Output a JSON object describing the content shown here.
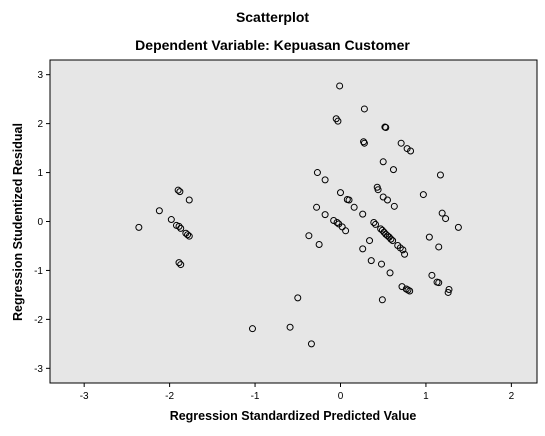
{
  "chart_data": {
    "type": "scatter",
    "title": "Scatterplot",
    "subtitle": "Dependent Variable: Kepuasan Customer",
    "xlabel": "Regression Standardized Predicted Value",
    "ylabel": "Regression Studentized Residual",
    "xlim": [
      -3.4,
      2.3
    ],
    "ylim": [
      -3.3,
      3.3
    ],
    "xticks": [
      "-3",
      "-2",
      "-1",
      "0",
      "1",
      "2"
    ],
    "yticks": [
      "3",
      "2",
      "1",
      "0",
      "-1",
      "-2",
      "-3"
    ],
    "grid": false,
    "background": "#e6e6e6",
    "marker_color": "#000000",
    "points": [
      {
        "x": -2.36,
        "y": -0.12
      },
      {
        "x": -2.12,
        "y": 0.22
      },
      {
        "x": -1.98,
        "y": 0.04
      },
      {
        "x": -1.9,
        "y": 0.64
      },
      {
        "x": -1.88,
        "y": 0.61
      },
      {
        "x": -1.77,
        "y": 0.44
      },
      {
        "x": -1.92,
        "y": -0.08
      },
      {
        "x": -1.89,
        "y": -0.1
      },
      {
        "x": -1.87,
        "y": -0.14
      },
      {
        "x": -1.81,
        "y": -0.24
      },
      {
        "x": -1.79,
        "y": -0.27
      },
      {
        "x": -1.77,
        "y": -0.3
      },
      {
        "x": -1.89,
        "y": -0.84
      },
      {
        "x": -1.87,
        "y": -0.88
      },
      {
        "x": -1.03,
        "y": -2.19
      },
      {
        "x": -0.59,
        "y": -2.16
      },
      {
        "x": -0.5,
        "y": -1.56
      },
      {
        "x": -0.34,
        "y": -2.5
      },
      {
        "x": -0.37,
        "y": -0.29
      },
      {
        "x": -0.25,
        "y": -0.47
      },
      {
        "x": -0.28,
        "y": 0.29
      },
      {
        "x": -0.18,
        "y": 0.14
      },
      {
        "x": -0.27,
        "y": 1.0
      },
      {
        "x": -0.18,
        "y": 0.85
      },
      {
        "x": -0.08,
        "y": 0.02
      },
      {
        "x": -0.04,
        "y": -0.02
      },
      {
        "x": -0.02,
        "y": -0.05
      },
      {
        "x": 0.02,
        "y": -0.11
      },
      {
        "x": 0.06,
        "y": -0.19
      },
      {
        "x": -0.05,
        "y": 2.1
      },
      {
        "x": -0.03,
        "y": 2.05
      },
      {
        "x": -0.01,
        "y": 2.77
      },
      {
        "x": 0.0,
        "y": 0.59
      },
      {
        "x": 0.08,
        "y": 0.45
      },
      {
        "x": 0.1,
        "y": 0.44
      },
      {
        "x": 0.16,
        "y": 0.29
      },
      {
        "x": 0.26,
        "y": 0.15
      },
      {
        "x": 0.27,
        "y": 1.63
      },
      {
        "x": 0.28,
        "y": 1.6
      },
      {
        "x": 0.28,
        "y": 2.3
      },
      {
        "x": 0.26,
        "y": -0.56
      },
      {
        "x": 0.34,
        "y": -0.39
      },
      {
        "x": 0.36,
        "y": -0.8
      },
      {
        "x": 0.39,
        "y": -0.02
      },
      {
        "x": 0.41,
        "y": -0.06
      },
      {
        "x": 0.43,
        "y": 0.7
      },
      {
        "x": 0.44,
        "y": 0.65
      },
      {
        "x": 0.47,
        "y": -0.15
      },
      {
        "x": 0.49,
        "y": -0.18
      },
      {
        "x": 0.51,
        "y": -0.22
      },
      {
        "x": 0.53,
        "y": -0.26
      },
      {
        "x": 0.55,
        "y": -0.29
      },
      {
        "x": 0.57,
        "y": -0.32
      },
      {
        "x": 0.59,
        "y": -0.36
      },
      {
        "x": 0.61,
        "y": -0.39
      },
      {
        "x": 0.5,
        "y": 1.22
      },
      {
        "x": 0.52,
        "y": 1.93
      },
      {
        "x": 0.53,
        "y": 1.92
      },
      {
        "x": 0.5,
        "y": 0.5
      },
      {
        "x": 0.55,
        "y": 0.44
      },
      {
        "x": 0.62,
        "y": 1.06
      },
      {
        "x": 0.63,
        "y": 0.31
      },
      {
        "x": 0.49,
        "y": -1.6
      },
      {
        "x": 0.48,
        "y": -0.87
      },
      {
        "x": 0.58,
        "y": -1.05
      },
      {
        "x": 0.67,
        "y": -0.49
      },
      {
        "x": 0.7,
        "y": -0.54
      },
      {
        "x": 0.73,
        "y": -0.58
      },
      {
        "x": 0.75,
        "y": -0.67
      },
      {
        "x": 0.71,
        "y": 1.6
      },
      {
        "x": 0.78,
        "y": 1.49
      },
      {
        "x": 0.82,
        "y": 1.44
      },
      {
        "x": 0.72,
        "y": -1.33
      },
      {
        "x": 0.77,
        "y": -1.38
      },
      {
        "x": 0.79,
        "y": -1.4
      },
      {
        "x": 0.81,
        "y": -1.42
      },
      {
        "x": 0.97,
        "y": 0.55
      },
      {
        "x": 1.04,
        "y": -0.32
      },
      {
        "x": 1.07,
        "y": -1.1
      },
      {
        "x": 1.13,
        "y": -1.24
      },
      {
        "x": 1.15,
        "y": -1.25
      },
      {
        "x": 1.17,
        "y": 0.95
      },
      {
        "x": 1.19,
        "y": 0.17
      },
      {
        "x": 1.23,
        "y": 0.06
      },
      {
        "x": 1.15,
        "y": -0.52
      },
      {
        "x": 1.27,
        "y": -1.39
      },
      {
        "x": 1.26,
        "y": -1.45
      },
      {
        "x": 1.38,
        "y": -0.12
      }
    ]
  }
}
